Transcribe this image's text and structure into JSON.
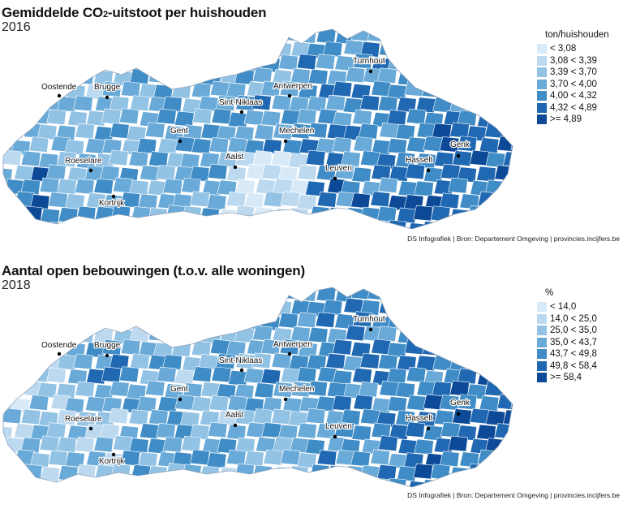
{
  "palette": [
    "#d8eaf7",
    "#bcd9ef",
    "#92c2e4",
    "#6aaad8",
    "#3f8cc6",
    "#2068b2",
    "#0c4a98"
  ],
  "maps": [
    {
      "title_main": "Gemiddelde CO",
      "title_sub": "2",
      "title_rest": "-uitstoot per huishouden",
      "year": "2016",
      "legend_title": "ton/huishouden",
      "legend": [
        "< 3,08",
        "3,08 < 3,39",
        "3,39 < 3,70",
        "3,70 < 4,00",
        "4,00 < 4,32",
        "4,32 < 4,89",
        ">= 4,89"
      ],
      "source": "DS Infografiek | Bron: Departement Omgeving | provincies.incijfers.be"
    },
    {
      "title_main": "Aantal open bebouwingen (t.o.v. alle woningen)",
      "title_sub": "",
      "title_rest": "",
      "year": "2018",
      "legend_title": "%",
      "legend": [
        "< 14,0",
        "14,0 < 25,0",
        "25,0 < 35,0",
        "35,0 < 43,7",
        "43,7 < 49,8",
        "49,8 < 58,4",
        ">= 58,4"
      ],
      "source": "DS Infografiek | Bron: Departement Omgeving | provincies.incijfers.be"
    }
  ],
  "cities": [
    "Oostende",
    "Brugge",
    "Antwerpen",
    "Turnhout",
    "Sint-Niklaas",
    "Gent",
    "Mechelen",
    "Roeselare",
    "Aalst",
    "Leuven",
    "Hasselt",
    "Genk",
    "Kortrijk"
  ]
}
